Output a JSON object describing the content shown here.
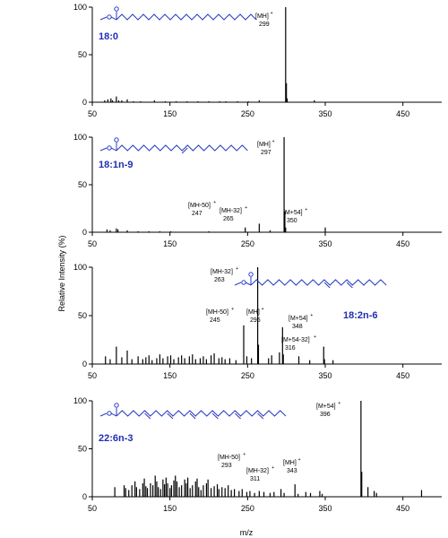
{
  "figure": {
    "ylabel": "Relative Intensity (%)",
    "xlabel": "m/z"
  },
  "chart_data": [
    {
      "type": "bar",
      "compound": "18:0",
      "xlim": [
        50,
        500
      ],
      "ylim": [
        0,
        100
      ],
      "xticks": [
        50,
        150,
        250,
        350,
        450
      ],
      "yticks": [
        0,
        50,
        100
      ],
      "peaks": [
        {
          "mz": 66,
          "value": 2
        },
        {
          "mz": 70,
          "value": 3
        },
        {
          "mz": 74,
          "value": 4
        },
        {
          "mz": 76,
          "value": 2
        },
        {
          "mz": 81,
          "value": 6
        },
        {
          "mz": 84,
          "value": 2
        },
        {
          "mz": 88,
          "value": 2
        },
        {
          "mz": 95,
          "value": 3
        },
        {
          "mz": 103,
          "value": 1
        },
        {
          "mz": 112,
          "value": 1
        },
        {
          "mz": 130,
          "value": 2
        },
        {
          "mz": 144,
          "value": 1
        },
        {
          "mz": 158,
          "value": 1
        },
        {
          "mz": 172,
          "value": 1
        },
        {
          "mz": 186,
          "value": 1
        },
        {
          "mz": 200,
          "value": 1
        },
        {
          "mz": 214,
          "value": 1
        },
        {
          "mz": 222,
          "value": 1
        },
        {
          "mz": 237,
          "value": 1
        },
        {
          "mz": 251,
          "value": 1
        },
        {
          "mz": 265,
          "value": 2
        },
        {
          "mz": 299,
          "value": 100
        },
        {
          "mz": 300,
          "value": 20
        },
        {
          "mz": 301,
          "value": 4
        },
        {
          "mz": 336,
          "value": 2
        }
      ],
      "annotations": [
        {
          "label": "[MH]",
          "sup": "+",
          "value": "299",
          "mz": 299
        }
      ]
    },
    {
      "type": "bar",
      "compound": "18:1n-9",
      "xlim": [
        50,
        500
      ],
      "ylim": [
        0,
        100
      ],
      "xticks": [
        50,
        150,
        250,
        350,
        450
      ],
      "yticks": [
        0,
        50,
        100
      ],
      "peaks": [
        {
          "mz": 69,
          "value": 3
        },
        {
          "mz": 73,
          "value": 2
        },
        {
          "mz": 81,
          "value": 4
        },
        {
          "mz": 83,
          "value": 3
        },
        {
          "mz": 95,
          "value": 2
        },
        {
          "mz": 109,
          "value": 1
        },
        {
          "mz": 123,
          "value": 1
        },
        {
          "mz": 137,
          "value": 1
        },
        {
          "mz": 151,
          "value": 1
        },
        {
          "mz": 200,
          "value": 1
        },
        {
          "mz": 247,
          "value": 5
        },
        {
          "mz": 265,
          "value": 9
        },
        {
          "mz": 279,
          "value": 2
        },
        {
          "mz": 297,
          "value": 100
        },
        {
          "mz": 298,
          "value": 22
        },
        {
          "mz": 299,
          "value": 5
        },
        {
          "mz": 350,
          "value": 5
        }
      ],
      "annotations": [
        {
          "label": "[MH]",
          "sup": "+",
          "value": "297",
          "mz": 297
        },
        {
          "label": "[MH-50]",
          "sup": "+",
          "value": "247",
          "mz": 247
        },
        {
          "label": "[MH-32]",
          "sup": "+",
          "value": "265",
          "mz": 265
        },
        {
          "label": "[M+54]",
          "sup": "+",
          "value": "350",
          "mz": 350
        }
      ]
    },
    {
      "type": "bar",
      "compound": "18:2n-6",
      "xlim": [
        50,
        500
      ],
      "ylim": [
        0,
        100
      ],
      "xticks": [
        50,
        150,
        250,
        350,
        450
      ],
      "yticks": [
        0,
        50,
        100
      ],
      "peaks": [
        {
          "mz": 67,
          "value": 8
        },
        {
          "mz": 73,
          "value": 5
        },
        {
          "mz": 81,
          "value": 18
        },
        {
          "mz": 88,
          "value": 7
        },
        {
          "mz": 95,
          "value": 14
        },
        {
          "mz": 101,
          "value": 5
        },
        {
          "mz": 109,
          "value": 8
        },
        {
          "mz": 115,
          "value": 5
        },
        {
          "mz": 119,
          "value": 7
        },
        {
          "mz": 123,
          "value": 9
        },
        {
          "mz": 127,
          "value": 4
        },
        {
          "mz": 133,
          "value": 6
        },
        {
          "mz": 137,
          "value": 10
        },
        {
          "mz": 141,
          "value": 6
        },
        {
          "mz": 147,
          "value": 8
        },
        {
          "mz": 151,
          "value": 9
        },
        {
          "mz": 155,
          "value": 5
        },
        {
          "mz": 161,
          "value": 7
        },
        {
          "mz": 165,
          "value": 9
        },
        {
          "mz": 169,
          "value": 6
        },
        {
          "mz": 175,
          "value": 8
        },
        {
          "mz": 179,
          "value": 10
        },
        {
          "mz": 183,
          "value": 5
        },
        {
          "mz": 189,
          "value": 6
        },
        {
          "mz": 193,
          "value": 8
        },
        {
          "mz": 197,
          "value": 5
        },
        {
          "mz": 203,
          "value": 9
        },
        {
          "mz": 207,
          "value": 11
        },
        {
          "mz": 213,
          "value": 6
        },
        {
          "mz": 217,
          "value": 7
        },
        {
          "mz": 221,
          "value": 5
        },
        {
          "mz": 227,
          "value": 6
        },
        {
          "mz": 235,
          "value": 4
        },
        {
          "mz": 245,
          "value": 40
        },
        {
          "mz": 249,
          "value": 8
        },
        {
          "mz": 255,
          "value": 6
        },
        {
          "mz": 263,
          "value": 100
        },
        {
          "mz": 264,
          "value": 20
        },
        {
          "mz": 277,
          "value": 6
        },
        {
          "mz": 281,
          "value": 9
        },
        {
          "mz": 291,
          "value": 12
        },
        {
          "mz": 295,
          "value": 38
        },
        {
          "mz": 296,
          "value": 10
        },
        {
          "mz": 316,
          "value": 8
        },
        {
          "mz": 330,
          "value": 4
        },
        {
          "mz": 348,
          "value": 18
        },
        {
          "mz": 349,
          "value": 5
        },
        {
          "mz": 360,
          "value": 4
        }
      ],
      "annotations": [
        {
          "label": "[MH-32]",
          "sup": "+",
          "value": "263",
          "mz": 263
        },
        {
          "label": "[MH-50]",
          "sup": "+",
          "value": "245",
          "mz": 245
        },
        {
          "label": "[MH]",
          "sup": "+",
          "value": "295",
          "mz": 295
        },
        {
          "label": "[M+54-32]",
          "sup": "+",
          "value": "316",
          "mz": 316
        },
        {
          "label": "[M+54]",
          "sup": "+",
          "value": "348",
          "mz": 348
        }
      ]
    },
    {
      "type": "bar",
      "compound": "22:6n-3",
      "xlim": [
        50,
        500
      ],
      "ylim": [
        0,
        100
      ],
      "xticks": [
        50,
        150,
        250,
        350,
        450
      ],
      "yticks": [
        0,
        50,
        100
      ],
      "peaks": [
        {
          "mz": 79,
          "value": 10
        },
        {
          "mz": 91,
          "value": 12
        },
        {
          "mz": 93,
          "value": 9
        },
        {
          "mz": 97,
          "value": 7
        },
        {
          "mz": 101,
          "value": 12
        },
        {
          "mz": 105,
          "value": 16
        },
        {
          "mz": 107,
          "value": 10
        },
        {
          "mz": 111,
          "value": 8
        },
        {
          "mz": 115,
          "value": 14
        },
        {
          "mz": 117,
          "value": 19
        },
        {
          "mz": 119,
          "value": 11
        },
        {
          "mz": 121,
          "value": 9
        },
        {
          "mz": 125,
          "value": 14
        },
        {
          "mz": 128,
          "value": 12
        },
        {
          "mz": 131,
          "value": 22
        },
        {
          "mz": 133,
          "value": 16
        },
        {
          "mz": 135,
          "value": 10
        },
        {
          "mz": 138,
          "value": 8
        },
        {
          "mz": 141,
          "value": 18
        },
        {
          "mz": 143,
          "value": 13
        },
        {
          "mz": 145,
          "value": 20
        },
        {
          "mz": 147,
          "value": 14
        },
        {
          "mz": 150,
          "value": 9
        },
        {
          "mz": 152,
          "value": 12
        },
        {
          "mz": 155,
          "value": 17
        },
        {
          "mz": 157,
          "value": 22
        },
        {
          "mz": 159,
          "value": 16
        },
        {
          "mz": 162,
          "value": 10
        },
        {
          "mz": 165,
          "value": 12
        },
        {
          "mz": 169,
          "value": 18
        },
        {
          "mz": 171,
          "value": 14
        },
        {
          "mz": 173,
          "value": 20
        },
        {
          "mz": 176,
          "value": 9
        },
        {
          "mz": 179,
          "value": 12
        },
        {
          "mz": 183,
          "value": 16
        },
        {
          "mz": 185,
          "value": 19
        },
        {
          "mz": 187,
          "value": 10
        },
        {
          "mz": 190,
          "value": 7
        },
        {
          "mz": 193,
          "value": 12
        },
        {
          "mz": 197,
          "value": 14
        },
        {
          "mz": 199,
          "value": 18
        },
        {
          "mz": 203,
          "value": 9
        },
        {
          "mz": 207,
          "value": 11
        },
        {
          "mz": 211,
          "value": 13
        },
        {
          "mz": 213,
          "value": 8
        },
        {
          "mz": 217,
          "value": 10
        },
        {
          "mz": 221,
          "value": 9
        },
        {
          "mz": 225,
          "value": 12
        },
        {
          "mz": 229,
          "value": 7
        },
        {
          "mz": 233,
          "value": 8
        },
        {
          "mz": 239,
          "value": 6
        },
        {
          "mz": 243,
          "value": 8
        },
        {
          "mz": 249,
          "value": 5
        },
        {
          "mz": 253,
          "value": 6
        },
        {
          "mz": 259,
          "value": 4
        },
        {
          "mz": 265,
          "value": 6
        },
        {
          "mz": 271,
          "value": 5
        },
        {
          "mz": 279,
          "value": 4
        },
        {
          "mz": 284,
          "value": 5
        },
        {
          "mz": 293,
          "value": 8
        },
        {
          "mz": 297,
          "value": 4
        },
        {
          "mz": 311,
          "value": 13
        },
        {
          "mz": 315,
          "value": 3
        },
        {
          "mz": 325,
          "value": 5
        },
        {
          "mz": 331,
          "value": 4
        },
        {
          "mz": 343,
          "value": 6
        },
        {
          "mz": 346,
          "value": 3
        },
        {
          "mz": 396,
          "value": 100
        },
        {
          "mz": 397,
          "value": 26
        },
        {
          "mz": 405,
          "value": 10
        },
        {
          "mz": 413,
          "value": 6
        },
        {
          "mz": 416,
          "value": 4
        },
        {
          "mz": 474,
          "value": 7
        }
      ],
      "annotations": [
        {
          "label": "[M+54]",
          "sup": "+",
          "value": "396",
          "mz": 396
        },
        {
          "label": "[MH-50]",
          "sup": "+",
          "value": "293",
          "mz": 293
        },
        {
          "label": "[MH-32]",
          "sup": "+",
          "value": "311",
          "mz": 311
        },
        {
          "label": "[MH]",
          "sup": "+",
          "value": "343",
          "mz": 343
        }
      ]
    }
  ]
}
